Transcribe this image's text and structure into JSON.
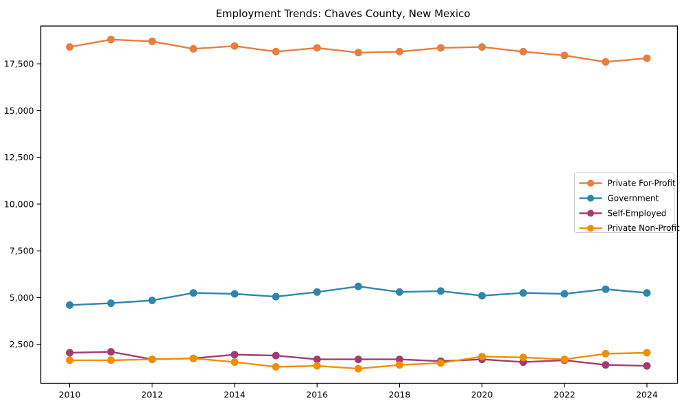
{
  "chart_data": {
    "type": "line",
    "title": "Employment Trends: Chaves County, New Mexico",
    "xlabel": "",
    "ylabel": "",
    "grid": false,
    "legend_position": "center-right",
    "x": [
      2010,
      2011,
      2012,
      2013,
      2014,
      2015,
      2016,
      2017,
      2018,
      2019,
      2020,
      2021,
      2022,
      2023,
      2024
    ],
    "series": [
      {
        "name": "Private For-Profit",
        "color": "#e87d3e",
        "values": [
          18400,
          18800,
          18700,
          18300,
          18450,
          18150,
          18350,
          18100,
          18150,
          18350,
          18400,
          18150,
          17950,
          17600,
          17800
        ]
      },
      {
        "name": "Government",
        "color": "#2e86ab",
        "values": [
          4600,
          4700,
          4850,
          5250,
          5200,
          5050,
          5300,
          5600,
          5300,
          5350,
          5100,
          5250,
          5200,
          5450,
          5250
        ]
      },
      {
        "name": "Self-Employed",
        "color": "#a23b72",
        "values": [
          2050,
          2100,
          1700,
          1750,
          1950,
          1900,
          1700,
          1700,
          1700,
          1600,
          1700,
          1550,
          1650,
          1400,
          1350
        ]
      },
      {
        "name": "Private Non-Profit",
        "color": "#f18f01",
        "values": [
          1650,
          1650,
          1700,
          1750,
          1550,
          1300,
          1350,
          1200,
          1400,
          1500,
          1850,
          1800,
          1700,
          2000,
          2050
        ]
      }
    ],
    "xlim": [
      2009.3,
      2024.74
    ],
    "ylim": [
      420,
      19520
    ],
    "xticks": {
      "values": [
        2010,
        2012,
        2014,
        2016,
        2018,
        2020,
        2022,
        2024
      ],
      "labels": [
        "2010",
        "2012",
        "2014",
        "2016",
        "2018",
        "2020",
        "2022",
        "2024"
      ]
    },
    "yticks": {
      "values": [
        2500,
        5000,
        7500,
        10000,
        12500,
        15000,
        17500
      ],
      "labels": [
        "2,500",
        "5,000",
        "7,500",
        "10,000",
        "12,500",
        "15,000",
        "17,500"
      ]
    },
    "frame_color": "#000000",
    "legend_border_color": "#c9c9c9"
  }
}
